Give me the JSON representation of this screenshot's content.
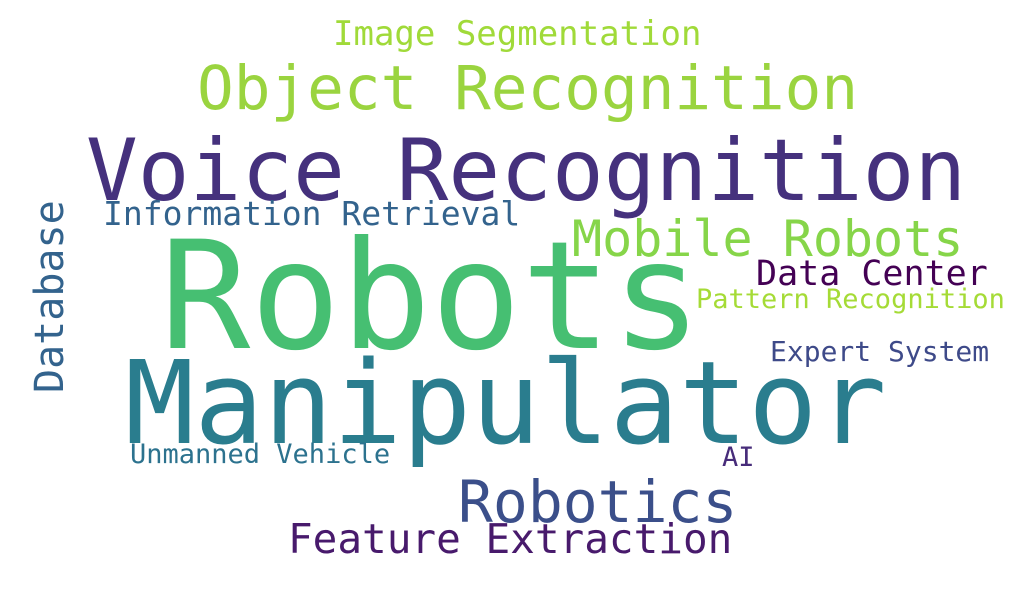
{
  "words": [
    {
      "id": "robots",
      "text": "Robots",
      "color": "#46bf72"
    },
    {
      "id": "manipulator",
      "text": "Manipulator",
      "color": "#2a7d8e"
    },
    {
      "id": "voice-recognition",
      "text": "Voice Recognition",
      "color": "#45317d"
    },
    {
      "id": "object-recognition",
      "text": "Object Recognition",
      "color": "#9ad43f"
    },
    {
      "id": "robotics",
      "text": "Robotics",
      "color": "#3b4f8a"
    },
    {
      "id": "mobile-robots",
      "text": "Mobile Robots",
      "color": "#86d549"
    },
    {
      "id": "feature-extraction",
      "text": "Feature Extraction",
      "color": "#481a6c"
    },
    {
      "id": "information-retrieval",
      "text": "Information Retrieval",
      "color": "#33638d"
    },
    {
      "id": "database",
      "text": "Database",
      "color": "#33638d"
    },
    {
      "id": "data-center",
      "text": "Data Center",
      "color": "#440154"
    },
    {
      "id": "image-segmentation",
      "text": "Image Segmentation",
      "color": "#a0da39"
    },
    {
      "id": "pattern-recognition",
      "text": "Pattern Recognition",
      "color": "#a5db36"
    },
    {
      "id": "expert-system",
      "text": "Expert System",
      "color": "#3e4a89"
    },
    {
      "id": "unmanned-vehicle",
      "text": "Unmanned Vehicle",
      "color": "#2c728e"
    },
    {
      "id": "ai",
      "text": "AI",
      "color": "#472c7a"
    }
  ]
}
